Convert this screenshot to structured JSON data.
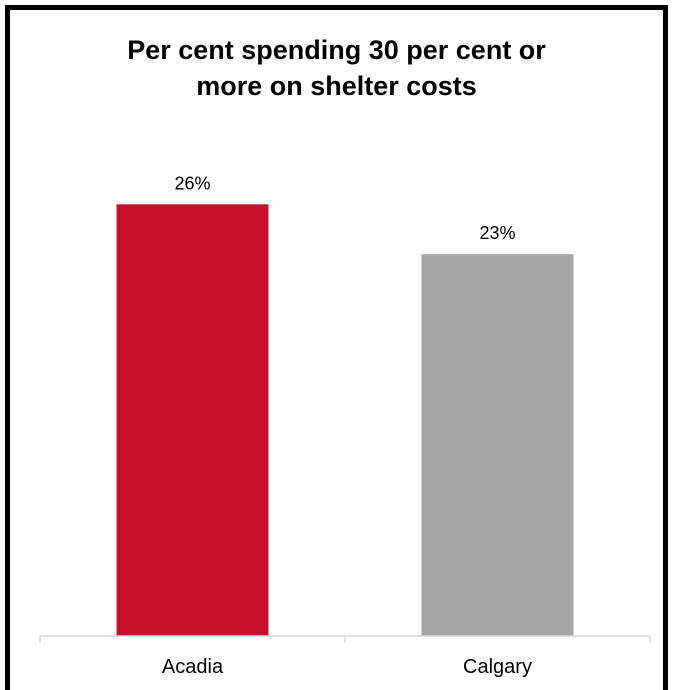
{
  "chart_data": {
    "type": "bar",
    "title_lines": [
      "Per cent spending 30 per cent or",
      "more on shelter costs"
    ],
    "categories": [
      "Acadia",
      "Calgary"
    ],
    "values": [
      26,
      23
    ],
    "value_labels": [
      "26%",
      "23%"
    ],
    "colors": [
      "#c8102e",
      "#a6a6a6"
    ],
    "ylim": [
      0,
      26.5
    ],
    "xlabel": "",
    "ylabel": "",
    "grid": false,
    "legend": "none"
  }
}
